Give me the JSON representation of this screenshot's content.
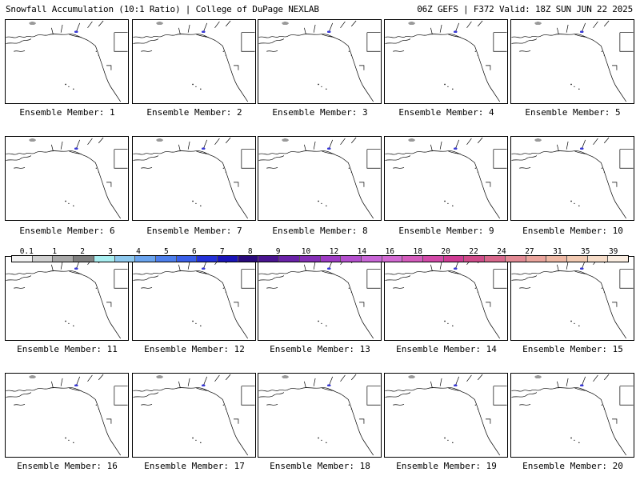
{
  "header": {
    "left": "Snowfall Accumulation (10:1 Ratio) | College of DuPage NEXLAB",
    "right": "06Z GEFS | F372 Valid: 18Z SUN JUN 22 2025"
  },
  "members": [
    "Ensemble Member: 1",
    "Ensemble Member: 2",
    "Ensemble Member: 3",
    "Ensemble Member: 4",
    "Ensemble Member: 5",
    "Ensemble Member: 6",
    "Ensemble Member: 7",
    "Ensemble Member: 8",
    "Ensemble Member: 9",
    "Ensemble Member: 10",
    "Ensemble Member: 11",
    "Ensemble Member: 12",
    "Ensemble Member: 13",
    "Ensemble Member: 14",
    "Ensemble Member: 15",
    "Ensemble Member: 16",
    "Ensemble Member: 17",
    "Ensemble Member: 18",
    "Ensemble Member: 19",
    "Ensemble Member: 20"
  ],
  "colorbar": {
    "labels": [
      "0.1",
      "1",
      "2",
      "3",
      "4",
      "5",
      "6",
      "7",
      "8",
      "9",
      "10",
      "12",
      "14",
      "16",
      "18",
      "20",
      "22",
      "24",
      "27",
      "31",
      "35",
      "39"
    ],
    "colors": [
      "#f2f2f2",
      "#d0d0d0",
      "#a9a9a9",
      "#808080",
      "#a8eef0",
      "#8ec9ee",
      "#6aa4ee",
      "#4d7fec",
      "#3a5fe8",
      "#2431d8",
      "#1a14b8",
      "#2a0a7c",
      "#4a1490",
      "#6a22a8",
      "#8530b6",
      "#9e3cc4",
      "#b450ce",
      "#c866d6",
      "#d26ad2",
      "#d45cbc",
      "#d24aa8",
      "#cf3c94",
      "#cf4c8a",
      "#d8688c",
      "#e28a94",
      "#eaa49c",
      "#eeb8a4",
      "#f2cab2",
      "#f6dcc8",
      "#fbeee2"
    ]
  },
  "map": {
    "land_line_color": "#000000",
    "snow_colors": [
      "#c8c8c8",
      "#9a9a9a",
      "#6a8cf0",
      "#3a3ad8",
      "#7a1aa8",
      "#c040c8",
      "#e070d0"
    ]
  }
}
